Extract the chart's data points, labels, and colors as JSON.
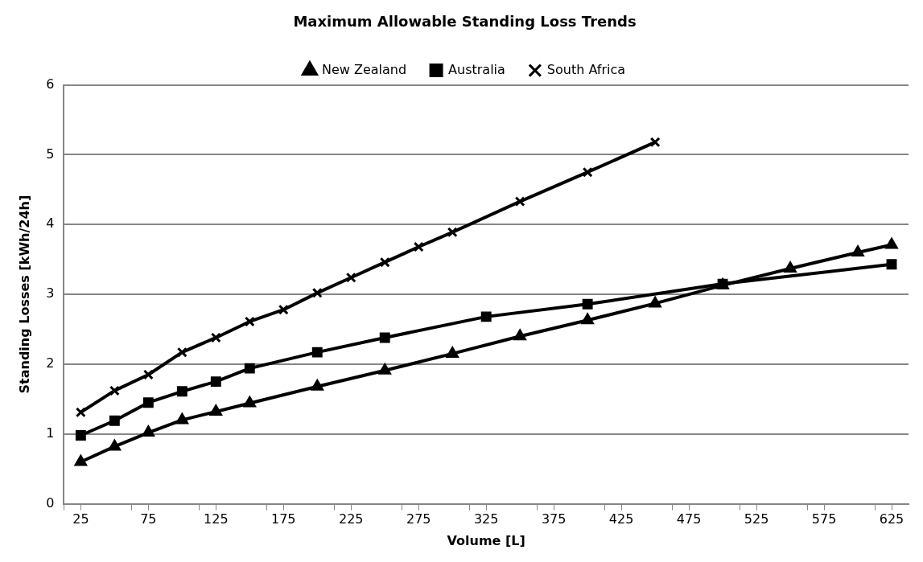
{
  "chart_data": {
    "type": "line",
    "title": "Maximum Allowable Standing Loss Trends",
    "xlabel": "Volume [L]",
    "ylabel": "Standing Losses [kWh/24h]",
    "xlim": [
      12.5,
      637.5
    ],
    "xticks": [
      {
        "value": 12.5,
        "label": null
      },
      25,
      {
        "value": 62.5,
        "label": null
      },
      75,
      {
        "value": 112.5,
        "label": null
      },
      125,
      {
        "value": 162.5,
        "label": null
      },
      175,
      {
        "value": 212.5,
        "label": null
      },
      225,
      {
        "value": 262.5,
        "label": null
      },
      275,
      {
        "value": 312.5,
        "label": null
      },
      325,
      {
        "value": 362.5,
        "label": null
      },
      375,
      {
        "value": 412.5,
        "label": null
      },
      425,
      {
        "value": 462.5,
        "label": null
      },
      475,
      {
        "value": 512.5,
        "label": null
      },
      525,
      {
        "value": 562.5,
        "label": null
      },
      575,
      {
        "value": 612.5,
        "label": null
      },
      625
    ],
    "ylim": [
      0,
      6
    ],
    "yticks": [
      0,
      1,
      2,
      3,
      4,
      5,
      6
    ],
    "grid": "y",
    "legend": "top",
    "series": [
      {
        "name": "New Zealand",
        "color": "#000000",
        "marker": "triangle",
        "x": [
          25,
          50,
          75,
          100,
          125,
          150,
          200,
          250,
          300,
          350,
          400,
          450,
          500,
          550,
          600,
          625
        ],
        "values": [
          0.6,
          0.82,
          1.02,
          1.2,
          1.32,
          1.44,
          1.68,
          1.91,
          2.15,
          2.4,
          2.63,
          2.87,
          3.13,
          3.37,
          3.6,
          3.71
        ]
      },
      {
        "name": "Australia",
        "color": "#000000",
        "marker": "square",
        "x": [
          25,
          50,
          75,
          100,
          125,
          150,
          200,
          250,
          325,
          400,
          500,
          625
        ],
        "values": [
          0.98,
          1.19,
          1.45,
          1.61,
          1.75,
          1.94,
          2.17,
          2.38,
          2.68,
          2.86,
          3.15,
          3.43
        ]
      },
      {
        "name": "South Africa",
        "color": "#000000",
        "marker": "cross",
        "x": [
          25,
          50,
          75,
          100,
          125,
          150,
          175,
          200,
          225,
          250,
          275,
          300,
          350,
          400,
          450
        ],
        "values": [
          1.31,
          1.62,
          1.85,
          2.17,
          2.38,
          2.61,
          2.78,
          3.02,
          3.24,
          3.46,
          3.68,
          3.89,
          4.33,
          4.75,
          5.18
        ]
      }
    ]
  }
}
